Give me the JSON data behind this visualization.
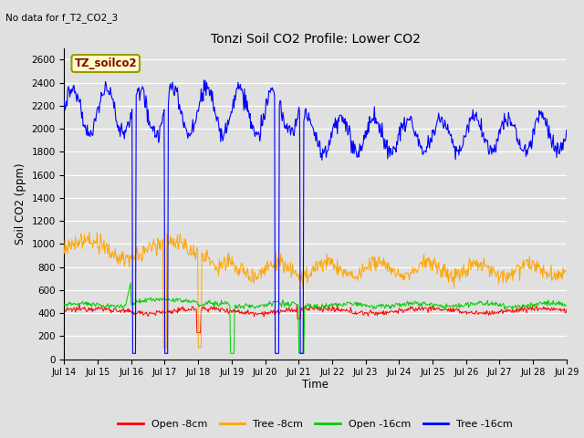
{
  "title": "Tonzi Soil CO2 Profile: Lower CO2",
  "subtitle": "No data for f_T2_CO2_3",
  "ylabel": "Soil CO2 (ppm)",
  "xlabel": "Time",
  "legend_label": "TZ_soilco2",
  "ylim": [
    0,
    2700
  ],
  "series_colors": {
    "open_8cm": "#ff0000",
    "tree_8cm": "#ffa500",
    "open_16cm": "#00cc00",
    "tree_16cm": "#0000ff"
  },
  "legend_entries": [
    "Open -8cm",
    "Tree -8cm",
    "Open -16cm",
    "Tree -16cm"
  ],
  "x_tick_labels": [
    "Jul 14",
    "Jul 15",
    "Jul 16",
    "Jul 17",
    "Jul 18",
    "Jul 19",
    "Jul 20",
    "Jul 21",
    "Jul 22",
    "Jul 23",
    "Jul 24",
    "Jul 25",
    "Jul 26",
    "Jul 27",
    "Jul 28",
    "Jul 29"
  ],
  "yticks": [
    0,
    200,
    400,
    600,
    800,
    1000,
    1200,
    1400,
    1600,
    1800,
    2000,
    2200,
    2400,
    2600
  ],
  "background_color": "#e0e0e0",
  "grid_color": "#ffffff"
}
